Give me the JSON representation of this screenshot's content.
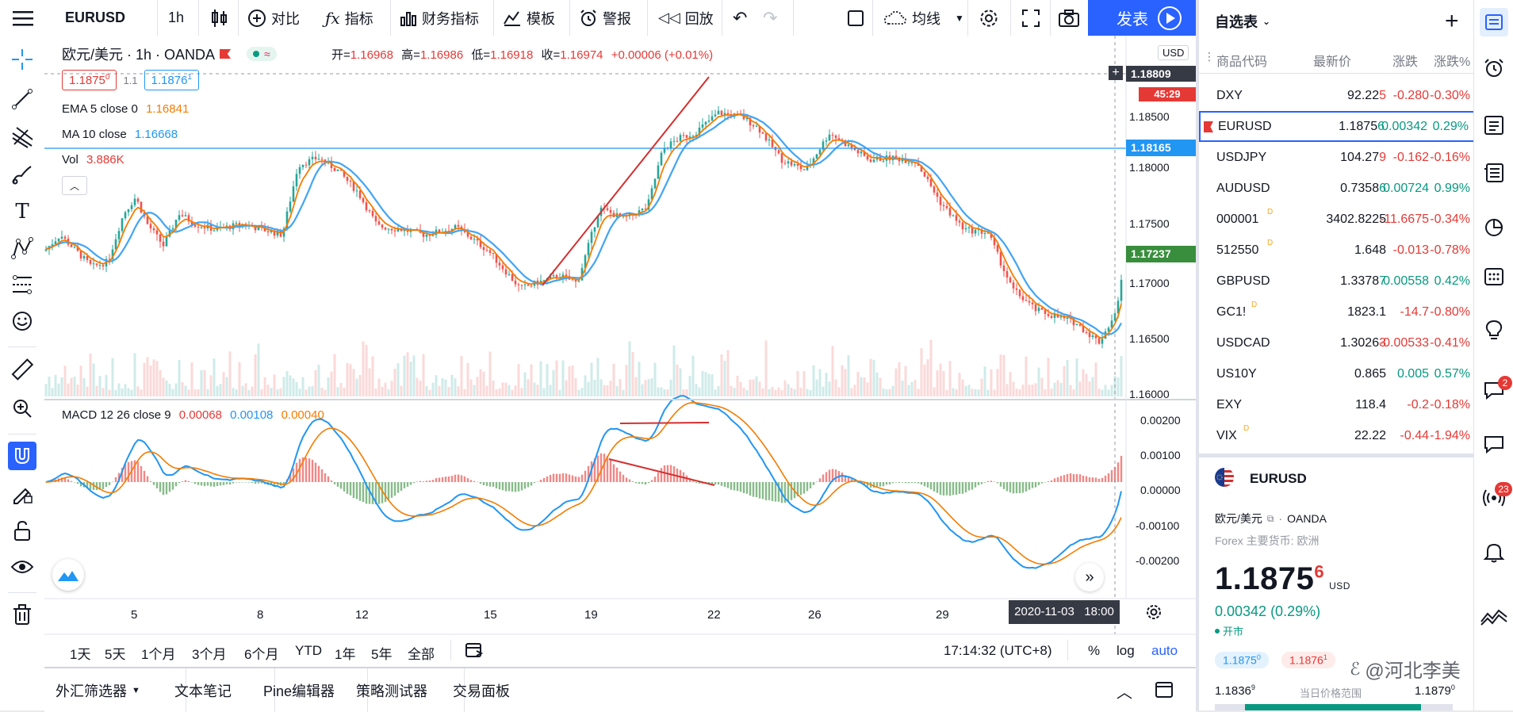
{
  "toolbar": {
    "symbol": "EURUSD",
    "interval": "1h",
    "compare": "对比",
    "indicators": "指标",
    "financials": "财务指标",
    "templates": "模板",
    "alert": "警报",
    "replay": "回放",
    "ma_label": "均线",
    "publish": "发表"
  },
  "legend": {
    "title": "欧元/美元 · 1h · OANDA",
    "o_label": "开=",
    "o": "1.16968",
    "h_label": "高=",
    "h": "1.16986",
    "l_label": "低=",
    "l": "1.16918",
    "c_label": "收=",
    "c": "1.16974",
    "chg": "+0.00006 (+0.01%)",
    "bid": "1.1875",
    "bid_sup": "0",
    "spread": "1.1",
    "ask": "1.1876",
    "ask_sup": "1",
    "ema_label": "EMA 5 close 0",
    "ema_val": "1.16841",
    "ma_label": "MA 10 close",
    "ma_val": "1.16668",
    "vol_label": "Vol",
    "vol_val": "3.886K",
    "macd_label": "MACD 12 26 close 9",
    "macd_v1": "0.00068",
    "macd_v2": "0.00108",
    "macd_v3": "0.00040"
  },
  "price_axis": {
    "currency": "USD",
    "ticks": [
      "1.18500",
      "1.18000",
      "1.17500",
      "1.17000",
      "1.16500",
      "1.16000"
    ],
    "crosshair_price": "1.18809",
    "countdown": "45:29",
    "hline_price": "1.18165",
    "last_price": "1.17237"
  },
  "macd_axis": {
    "ticks": [
      "0.00200",
      "0.00100",
      "0.00000",
      "-0.00100",
      "-0.00200"
    ]
  },
  "time_axis": {
    "ticks": [
      "5",
      "8",
      "12",
      "15",
      "19",
      "22",
      "26",
      "29"
    ],
    "crosshair_time": "2020-11-03   18:00"
  },
  "range_bar": {
    "ranges": [
      "1天",
      "5天",
      "1个月",
      "3个月",
      "6个月",
      "YTD",
      "1年",
      "5年",
      "全部"
    ],
    "clock": "17:14:32 (UTC+8)",
    "pct": "%",
    "log": "log",
    "auto": "auto"
  },
  "bottom_tabs": [
    "外汇筛选器",
    "文本笔记",
    "Pine编辑器",
    "策略测试器",
    "交易面板"
  ],
  "watchlist": {
    "title": "自选表",
    "headers": {
      "symbol": "商品代码",
      "last": "最新价",
      "chg": "涨跌",
      "pct": "涨跌%"
    },
    "rows": [
      {
        "sym": "DXY",
        "last": "92.22",
        "last_sup": "5",
        "chg": "-0.280",
        "pct": "-0.30%",
        "dir": "down"
      },
      {
        "sym": "EURUSD",
        "last": "1.1875",
        "last_sup": "6",
        "chg": "0.00342",
        "pct": "0.29%",
        "dir": "up"
      },
      {
        "sym": "USDJPY",
        "last": "104.27",
        "last_sup": "9",
        "chg": "-0.162",
        "pct": "-0.16%",
        "dir": "down"
      },
      {
        "sym": "AUDUSD",
        "last": "0.7358",
        "last_sup": "6",
        "chg": "0.00724",
        "pct": "0.99%",
        "dir": "up"
      },
      {
        "sym": "000001",
        "last": "3402.8225",
        "last_sup": "",
        "chg": "-11.6675",
        "pct": "-0.34%",
        "dir": "down",
        "badge": "D"
      },
      {
        "sym": "512550",
        "last": "1.648",
        "last_sup": "",
        "chg": "-0.013",
        "pct": "-0.78%",
        "dir": "down",
        "badge": "D"
      },
      {
        "sym": "GBPUSD",
        "last": "1.3378",
        "last_sup": "7",
        "chg": "0.00558",
        "pct": "0.42%",
        "dir": "up"
      },
      {
        "sym": "GC1!",
        "last": "1823.1",
        "last_sup": "",
        "chg": "-14.7",
        "pct": "-0.80%",
        "dir": "down",
        "badge": "D"
      },
      {
        "sym": "USDCAD",
        "last": "1.3026",
        "last_sup": "3",
        "chg": "-0.00533",
        "pct": "-0.41%",
        "dir": "down"
      },
      {
        "sym": "US10Y",
        "last": "0.865",
        "last_sup": "",
        "chg": "0.005",
        "pct": "0.57%",
        "dir": "up"
      },
      {
        "sym": "EXY",
        "last": "118.4",
        "last_sup": "",
        "chg": "-0.2",
        "pct": "-0.18%",
        "dir": "down"
      },
      {
        "sym": "VIX",
        "last": "22.22",
        "last_sup": "",
        "chg": "-0.44",
        "pct": "-1.94%",
        "dir": "down",
        "badge": "D"
      }
    ]
  },
  "details": {
    "symbol": "EURUSD",
    "desc": "欧元/美元",
    "exchange": "OANDA",
    "category": "Forex 主要货币: 欧洲",
    "price": "1.1875",
    "price_sup": "6",
    "currency": "USD",
    "change": "0.00342 (0.29%)",
    "status": "开市",
    "bid": "1.1875",
    "bid_sup": "0",
    "ask": "1.1876",
    "ask_sup": "1",
    "range_low": "1.1836",
    "range_low_sup": "9",
    "range_label": "当日价格范围",
    "range_high": "1.1879",
    "range_high_sup": "0"
  },
  "watermark": "@河北李美",
  "side_badges": {
    "chat": "2",
    "stream": "23"
  },
  "colors": {
    "accent": "#2962ff",
    "up": "#089981",
    "down": "#e53935",
    "ema": "#f57c00",
    "ma": "#42a5f5"
  }
}
